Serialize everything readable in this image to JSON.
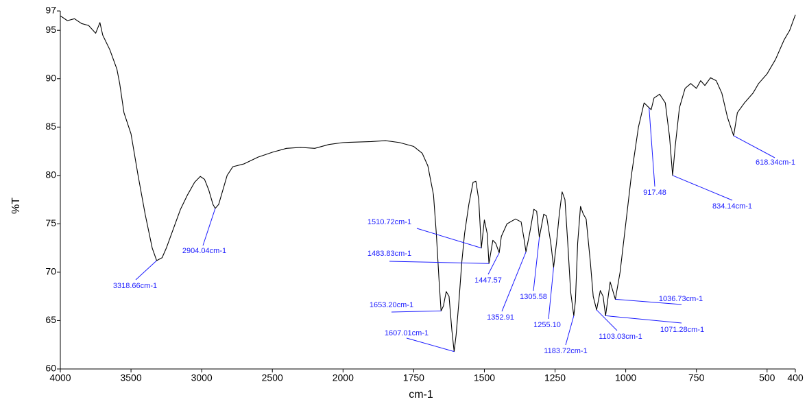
{
  "chart_data": {
    "type": "line",
    "x_label": "cm-1",
    "y_label": "%T",
    "color": "#000000",
    "annotation_color": "#1a1aff",
    "xlim": [
      4000,
      400
    ],
    "xbreak": 2000,
    "ylim": [
      60,
      97
    ],
    "xticks": [
      4000,
      3500,
      3000,
      2500,
      2000,
      1750,
      1500,
      1250,
      1000,
      750,
      500,
      400
    ],
    "yticks": [
      60,
      65,
      70,
      75,
      80,
      85,
      90,
      95,
      97
    ],
    "grid": false,
    "x": [
      4000,
      3950,
      3900,
      3850,
      3800,
      3750,
      3720,
      3700,
      3650,
      3600,
      3580,
      3550,
      3500,
      3450,
      3400,
      3350,
      3318.66,
      3280,
      3250,
      3200,
      3150,
      3100,
      3050,
      3010,
      2980,
      2950,
      2920,
      2904.04,
      2880,
      2850,
      2820,
      2780,
      2700,
      2600,
      2500,
      2400,
      2300,
      2200,
      2100,
      2000,
      1900,
      1850,
      1800,
      1750,
      1720,
      1700,
      1680,
      1670,
      1660,
      1653.2,
      1645,
      1635,
      1625,
      1615,
      1607.01,
      1600,
      1590,
      1580,
      1570,
      1555,
      1540,
      1530,
      1520,
      1510.72,
      1500,
      1490,
      1483.83,
      1470,
      1460,
      1447.57,
      1440,
      1420,
      1390,
      1370,
      1360,
      1352.91,
      1340,
      1325,
      1315,
      1305.58,
      1290,
      1280,
      1265,
      1255.1,
      1245,
      1235,
      1225,
      1215,
      1205,
      1195,
      1183.72,
      1178,
      1170,
      1160,
      1150,
      1140,
      1125,
      1115,
      1103.03,
      1090,
      1080,
      1071.28,
      1055,
      1036.73,
      1020,
      1000,
      980,
      955,
      935,
      917.48,
      910,
      900,
      880,
      860,
      845,
      834.14,
      825,
      810,
      790,
      770,
      750,
      735,
      720,
      700,
      680,
      660,
      640,
      618.34,
      605,
      580,
      550,
      530,
      500,
      470,
      440,
      420,
      400
    ],
    "values": [
      96.5,
      96.0,
      96.2,
      95.7,
      95.5,
      94.7,
      95.8,
      94.5,
      93.0,
      91.0,
      89.5,
      86.5,
      84.3,
      80.0,
      76.0,
      72.5,
      71.2,
      71.5,
      72.5,
      74.5,
      76.5,
      78.0,
      79.3,
      79.9,
      79.6,
      78.5,
      77.0,
      76.6,
      77.0,
      78.5,
      80.0,
      80.9,
      81.2,
      81.9,
      82.4,
      82.8,
      82.9,
      82.8,
      83.2,
      83.4,
      83.5,
      83.6,
      83.4,
      83.0,
      82.3,
      81.0,
      78.0,
      74.0,
      69.0,
      66.0,
      66.5,
      68.0,
      67.5,
      64.0,
      61.8,
      63.5,
      67.0,
      71.0,
      74.0,
      77.0,
      79.3,
      79.4,
      77.5,
      72.5,
      75.4,
      74.0,
      70.9,
      73.3,
      73.0,
      72.0,
      73.7,
      75.0,
      75.5,
      75.2,
      73.5,
      72.1,
      74.0,
      76.5,
      76.3,
      73.6,
      76.0,
      75.8,
      73.0,
      70.5,
      73.0,
      76.0,
      78.3,
      77.5,
      73.0,
      68.0,
      65.5,
      67.0,
      73.0,
      76.8,
      76.0,
      75.5,
      71.0,
      67.5,
      66.1,
      68.1,
      67.5,
      65.5,
      69.0,
      67.2,
      70.0,
      75.0,
      80.0,
      85.0,
      87.5,
      87.0,
      86.8,
      88.0,
      88.4,
      87.5,
      84.0,
      80.0,
      83.0,
      87.0,
      89.0,
      89.5,
      89.0,
      89.8,
      89.3,
      90.1,
      89.8,
      88.5,
      86.0,
      84.1,
      86.5,
      87.5,
      88.5,
      89.5,
      90.5,
      92.0,
      94.0,
      95.0,
      96.6
    ],
    "annotations": [
      {
        "x": 3318.66,
        "y": 71.2,
        "label": "3318.66cm-1"
      },
      {
        "x": 2904.04,
        "y": 76.6,
        "label": "2904.04cm-1"
      },
      {
        "x": 1510.72,
        "y": 72.5,
        "label": "1510.72cm-1"
      },
      {
        "x": 1483.83,
        "y": 70.9,
        "label": "1483.83cm-1"
      },
      {
        "x": 1447.57,
        "y": 72.0,
        "label": "1447.57"
      },
      {
        "x": 1352.91,
        "y": 72.1,
        "label": "1352.91"
      },
      {
        "x": 1305.58,
        "y": 73.6,
        "label": "1305.58"
      },
      {
        "x": 1255.1,
        "y": 70.5,
        "label": "1255.10"
      },
      {
        "x": 1653.2,
        "y": 66.0,
        "label": "1653.20cm-1"
      },
      {
        "x": 1607.01,
        "y": 61.8,
        "label": "1607.01cm-1"
      },
      {
        "x": 1183.72,
        "y": 65.5,
        "label": "1183.72cm-1"
      },
      {
        "x": 1103.03,
        "y": 66.1,
        "label": "1103.03cm-1"
      },
      {
        "x": 1071.28,
        "y": 65.5,
        "label": "1071.28cm-1"
      },
      {
        "x": 1036.73,
        "y": 67.2,
        "label": "1036.73cm-1"
      },
      {
        "x": 917.48,
        "y": 87.0,
        "label": "917.48"
      },
      {
        "x": 834.14,
        "y": 80.0,
        "label": "834.14cm-1"
      },
      {
        "x": 618.34,
        "y": 84.1,
        "label": "618.34cm-1"
      }
    ]
  }
}
